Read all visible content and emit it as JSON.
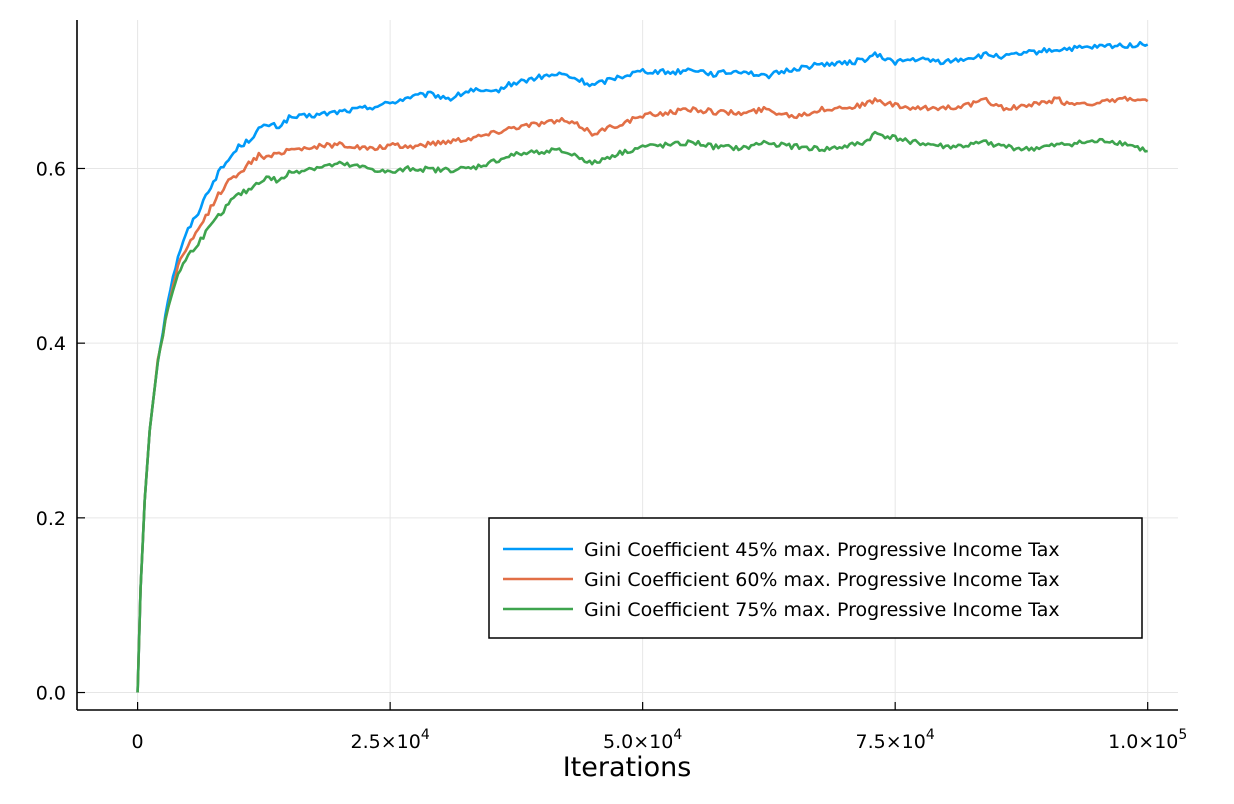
{
  "chart_data": {
    "type": "line",
    "title": "",
    "xlabel": "Iterations",
    "ylabel": "",
    "xlim": [
      -6000,
      103000
    ],
    "ylim": [
      -0.02,
      0.77
    ],
    "grid": true,
    "legend_position": "bottom-right",
    "x_ticks": [
      {
        "value": 0,
        "base": "0",
        "exp": ""
      },
      {
        "value": 25000,
        "base": "2.5×10",
        "exp": "4"
      },
      {
        "value": 50000,
        "base": "5.0×10",
        "exp": "4"
      },
      {
        "value": 75000,
        "base": "7.5×10",
        "exp": "4"
      },
      {
        "value": 100000,
        "base": "1.0×10",
        "exp": "5"
      }
    ],
    "y_ticks": [
      {
        "value": 0.0,
        "label": "0.0"
      },
      {
        "value": 0.2,
        "label": "0.2"
      },
      {
        "value": 0.4,
        "label": "0.4"
      },
      {
        "value": 0.6,
        "label": "0.6"
      }
    ],
    "series": [
      {
        "name": "Gini Coefficient 45% max. Progressive Income Tax",
        "color": "#009af9",
        "x": [
          0,
          300,
          700,
          1200,
          2000,
          3000,
          4000,
          5000,
          6000,
          7000,
          8000,
          9000,
          10000,
          11000,
          12000,
          13000,
          14000,
          15000,
          17000,
          20000,
          23000,
          25000,
          27000,
          29000,
          31000,
          33000,
          35000,
          37000,
          40000,
          42000,
          44000,
          45000,
          47000,
          50000,
          53000,
          55000,
          57000,
          60000,
          62000,
          65000,
          68000,
          70000,
          72000,
          73000,
          75000,
          77000,
          80000,
          82000,
          84000,
          86000,
          88000,
          90000,
          92000,
          94000,
          96000,
          98000,
          100000
        ],
        "y": [
          0.0,
          0.12,
          0.22,
          0.3,
          0.38,
          0.45,
          0.5,
          0.53,
          0.55,
          0.575,
          0.595,
          0.61,
          0.625,
          0.632,
          0.645,
          0.65,
          0.648,
          0.658,
          0.66,
          0.665,
          0.67,
          0.675,
          0.682,
          0.685,
          0.68,
          0.69,
          0.686,
          0.697,
          0.705,
          0.708,
          0.7,
          0.695,
          0.703,
          0.712,
          0.71,
          0.714,
          0.708,
          0.712,
          0.705,
          0.714,
          0.72,
          0.72,
          0.725,
          0.73,
          0.722,
          0.725,
          0.722,
          0.726,
          0.73,
          0.728,
          0.732,
          0.735,
          0.737,
          0.738,
          0.74,
          0.741,
          0.742
        ]
      },
      {
        "name": "Gini Coefficient 60% max. Progressive Income Tax",
        "color": "#e26f46",
        "x": [
          0,
          300,
          700,
          1200,
          2000,
          3000,
          4000,
          5000,
          6000,
          7000,
          8000,
          9000,
          10000,
          11000,
          12000,
          13000,
          14000,
          15000,
          17000,
          20000,
          23000,
          25000,
          27000,
          30000,
          33000,
          35000,
          37000,
          40000,
          42000,
          44000,
          45000,
          47000,
          50000,
          53000,
          55000,
          57000,
          60000,
          62000,
          65000,
          68000,
          70000,
          72000,
          73000,
          75000,
          77000,
          80000,
          82000,
          84000,
          86000,
          88000,
          90000,
          91000,
          92000,
          94000,
          96000,
          98000,
          100000
        ],
        "y": [
          0.0,
          0.12,
          0.22,
          0.3,
          0.38,
          0.44,
          0.49,
          0.51,
          0.53,
          0.55,
          0.57,
          0.585,
          0.595,
          0.605,
          0.615,
          0.612,
          0.618,
          0.622,
          0.624,
          0.628,
          0.622,
          0.626,
          0.625,
          0.63,
          0.635,
          0.64,
          0.647,
          0.652,
          0.655,
          0.648,
          0.64,
          0.648,
          0.66,
          0.665,
          0.668,
          0.665,
          0.663,
          0.668,
          0.66,
          0.668,
          0.67,
          0.673,
          0.678,
          0.672,
          0.668,
          0.67,
          0.672,
          0.678,
          0.668,
          0.672,
          0.675,
          0.68,
          0.674,
          0.675,
          0.676,
          0.68,
          0.677
        ]
      },
      {
        "name": "Gini Coefficient 75% max. Progressive Income Tax",
        "color": "#3ea44e",
        "x": [
          0,
          300,
          700,
          1200,
          2000,
          3000,
          4000,
          5000,
          6000,
          7000,
          8000,
          9000,
          10000,
          11000,
          12000,
          13000,
          14000,
          15000,
          17000,
          20000,
          23000,
          25000,
          27000,
          30000,
          33000,
          35000,
          37000,
          40000,
          42000,
          44000,
          45000,
          47000,
          50000,
          53000,
          55000,
          57000,
          60000,
          62000,
          65000,
          68000,
          70000,
          72000,
          73000,
          75000,
          77000,
          80000,
          82000,
          84000,
          86000,
          88000,
          90000,
          92000,
          94000,
          96000,
          98000,
          100000
        ],
        "y": [
          0.0,
          0.12,
          0.22,
          0.3,
          0.38,
          0.44,
          0.48,
          0.5,
          0.515,
          0.53,
          0.545,
          0.56,
          0.57,
          0.575,
          0.585,
          0.59,
          0.585,
          0.595,
          0.6,
          0.605,
          0.6,
          0.595,
          0.6,
          0.598,
          0.6,
          0.607,
          0.615,
          0.62,
          0.62,
          0.612,
          0.605,
          0.615,
          0.625,
          0.627,
          0.63,
          0.625,
          0.623,
          0.63,
          0.625,
          0.622,
          0.625,
          0.63,
          0.64,
          0.635,
          0.63,
          0.625,
          0.626,
          0.63,
          0.625,
          0.622,
          0.625,
          0.628,
          0.63,
          0.632,
          0.628,
          0.62
        ]
      }
    ]
  }
}
